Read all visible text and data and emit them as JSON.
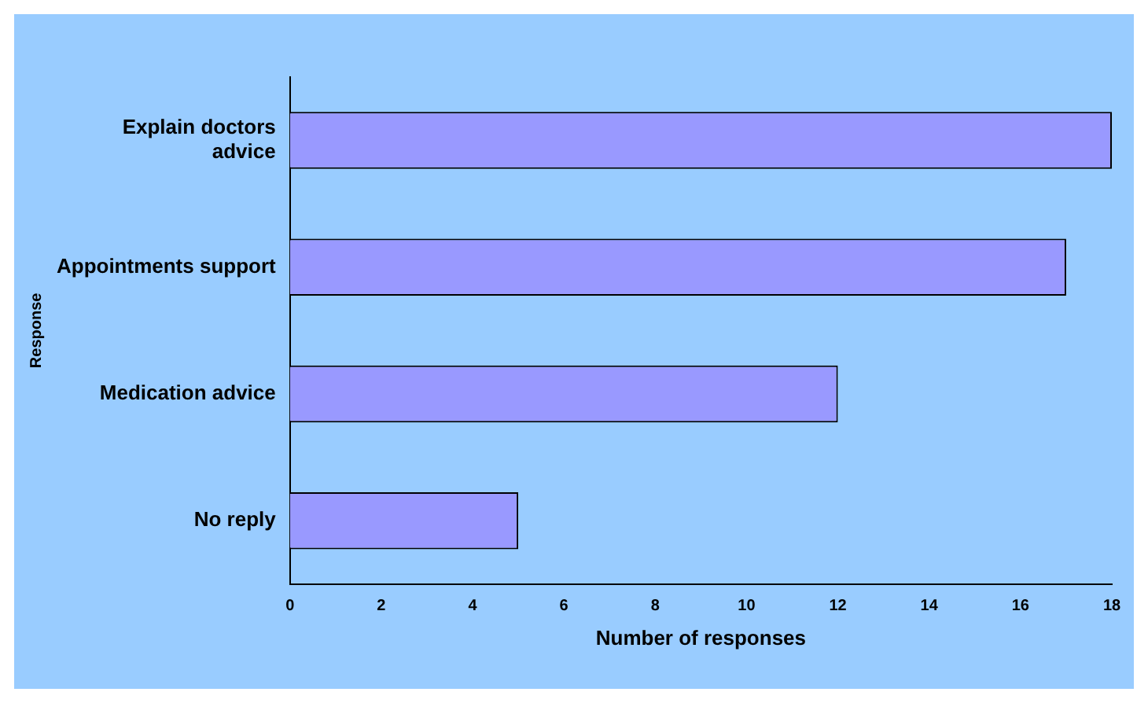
{
  "chart_data": {
    "type": "bar",
    "orientation": "horizontal",
    "xlabel": "Number of responses",
    "ylabel": "Response",
    "categories": [
      "Explain doctors advice",
      "Appointments support",
      "Medication advice",
      "No reply"
    ],
    "values": [
      18,
      17,
      12,
      5
    ],
    "color": "#9999ff",
    "xlim": [
      0,
      18
    ],
    "xticks": [
      0,
      2,
      4,
      6,
      8,
      10,
      12,
      14,
      16,
      18
    ],
    "grid": false,
    "legend": false
  }
}
